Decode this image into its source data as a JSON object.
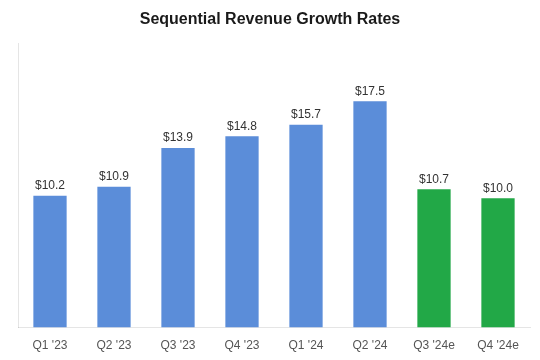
{
  "chart_data": {
    "type": "bar",
    "title": "Sequential Revenue Growth Rates",
    "categories": [
      "Q1 '23",
      "Q2 '23",
      "Q3 '23",
      "Q4 '23",
      "Q1 '24",
      "Q2 '24",
      "Q3 '24e",
      "Q4 '24e"
    ],
    "values": [
      10.2,
      10.9,
      13.9,
      14.8,
      15.7,
      17.5,
      10.7,
      10.0
    ],
    "value_labels": [
      "$10.2",
      "$10.9",
      "$13.9",
      "$14.8",
      "$15.7",
      "$17.5",
      "$10.7",
      "$10.0"
    ],
    "colors": [
      "#5B8DD9",
      "#5B8DD9",
      "#5B8DD9",
      "#5B8DD9",
      "#5B8DD9",
      "#5B8DD9",
      "#22A847",
      "#22A847"
    ],
    "ylim": [
      0,
      22
    ],
    "grid": false,
    "data_labels": true,
    "tick_labels": "x"
  }
}
